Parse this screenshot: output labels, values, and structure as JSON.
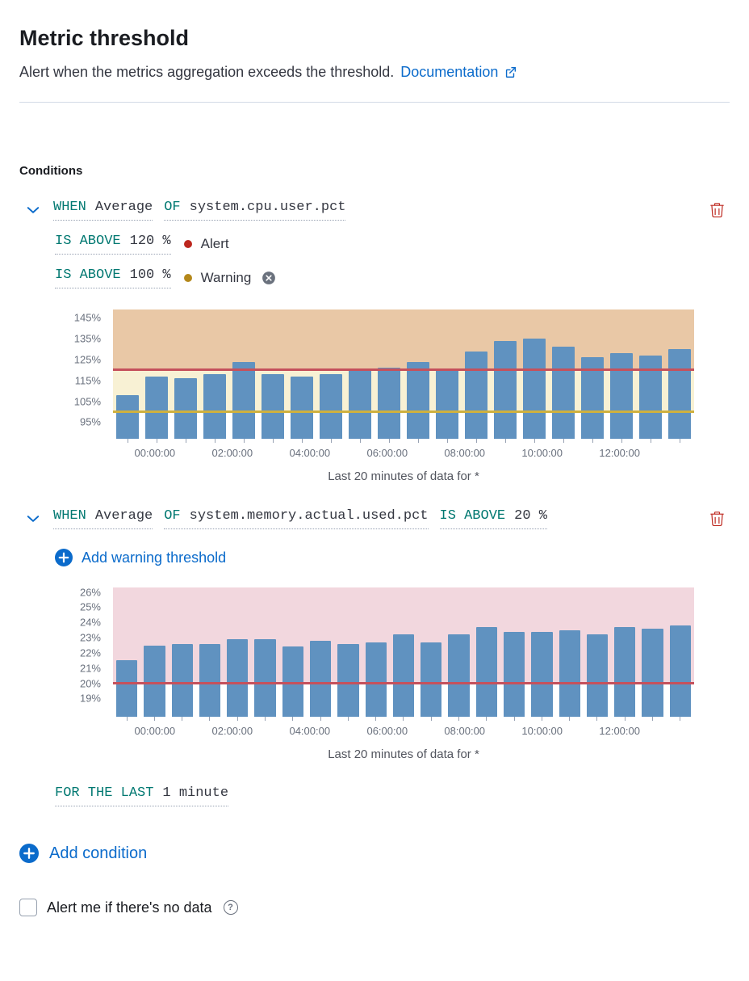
{
  "colors": {
    "accent": "#0b6bcb",
    "kw_green": "#007871",
    "alert_red": "#bd271e",
    "warning_gold": "#b4881b"
  },
  "header": {
    "title": "Metric threshold",
    "subtitle": "Alert when the metrics aggregation exceeds the threshold.",
    "doc_link_label": "Documentation"
  },
  "conditions_label": "Conditions",
  "condition1": {
    "when_label": "WHEN",
    "when_value": "Average",
    "of_label": "OF",
    "of_value": "system.cpu.user.pct",
    "alert_threshold": {
      "keyword": "IS ABOVE",
      "value": "120 %",
      "legend_label": "Alert"
    },
    "warning_threshold": {
      "keyword": "IS ABOVE",
      "value": "100 %",
      "legend_label": "Warning"
    }
  },
  "condition2": {
    "when_label": "WHEN",
    "when_value": "Average",
    "of_label": "OF",
    "of_value": "system.memory.actual.used.pct",
    "above_label": "IS ABOVE",
    "above_value": "20 %",
    "add_warning_label": "Add warning threshold"
  },
  "time_window": {
    "keyword": "FOR THE LAST",
    "value": "1 minute"
  },
  "add_condition_label": "Add condition",
  "no_data_label": "Alert me if there's no data",
  "icons": {
    "help_glyph": "?"
  },
  "chart_data": [
    {
      "type": "bar",
      "caption": "Last 20 minutes of data for *",
      "x_tick_labels": [
        "00:00:00",
        "02:00:00",
        "04:00:00",
        "06:00:00",
        "08:00:00",
        "10:00:00",
        "12:00:00"
      ],
      "y_ticks": [
        145,
        135,
        125,
        115,
        105,
        95
      ],
      "y_tick_suffix": "%",
      "ylim": [
        87,
        149
      ],
      "grid": false,
      "legend": "none",
      "bar_color": "#6092c0",
      "values": [
        108,
        117,
        116,
        118,
        124,
        118,
        117,
        118,
        120,
        121,
        124,
        120,
        129,
        134,
        135,
        131,
        126,
        128,
        127,
        130
      ],
      "thresholds": [
        {
          "name": "alert",
          "value": 120,
          "line_color": "#c5515c",
          "fill_above": "#e9c8a6"
        },
        {
          "name": "warning",
          "value": 100,
          "line_color": "#cfb13f",
          "fill_above": "#f8f1d4"
        }
      ]
    },
    {
      "type": "bar",
      "caption": "Last 20 minutes of data for *",
      "x_tick_labels": [
        "00:00:00",
        "02:00:00",
        "04:00:00",
        "06:00:00",
        "08:00:00",
        "10:00:00",
        "12:00:00"
      ],
      "y_ticks": [
        26,
        25,
        24,
        23,
        22,
        21,
        20,
        19
      ],
      "y_tick_suffix": "%",
      "ylim": [
        17.8,
        26.3
      ],
      "grid": false,
      "legend": "none",
      "bar_color": "#6092c0",
      "values": [
        21.5,
        22.5,
        22.6,
        22.6,
        22.9,
        22.9,
        22.4,
        22.8,
        22.6,
        22.7,
        23.2,
        22.7,
        23.2,
        23.7,
        23.4,
        23.4,
        23.5,
        23.2,
        23.7,
        23.6,
        23.8
      ],
      "thresholds": [
        {
          "name": "alert",
          "value": 20,
          "line_color": "#c5515c",
          "fill_above": "#f2d7de"
        }
      ]
    }
  ]
}
